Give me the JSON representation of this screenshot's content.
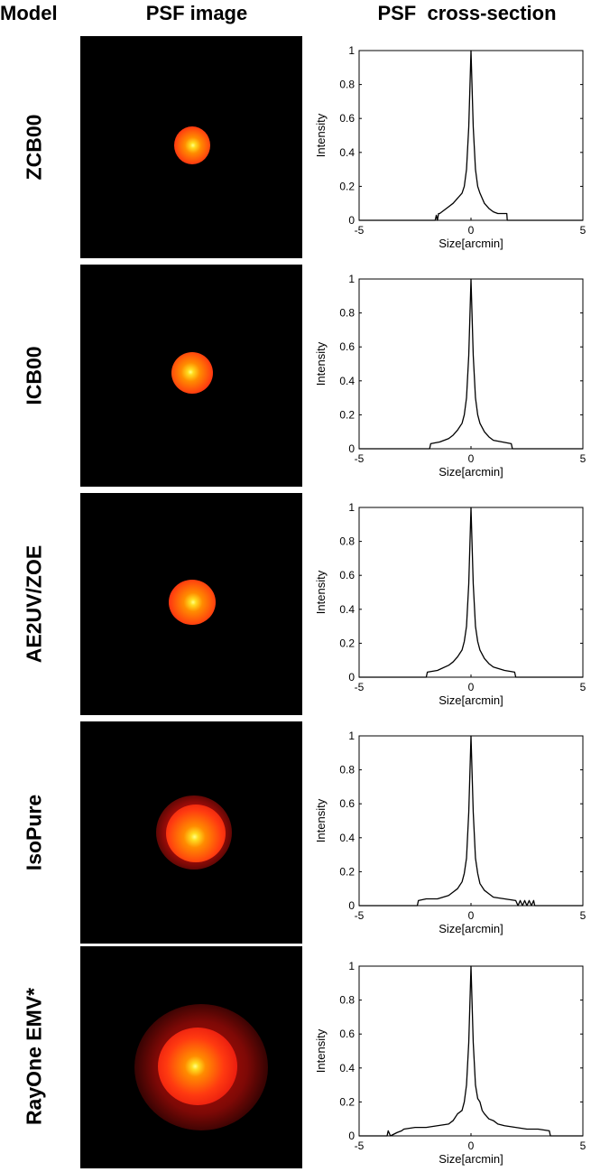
{
  "headers": {
    "model": "Model",
    "psf_image": "PSF image",
    "cross_section": "PSF  cross-section"
  },
  "colors": {
    "psf_background": "#000000",
    "psf_core": "#ffff66",
    "psf_mid": "#ff6a00",
    "psf_edge": "#e01010",
    "curve": "#000000"
  },
  "chart_data": [
    {
      "type": "line",
      "model": "ZCB00",
      "xlabel": "Size[arcmin]",
      "ylabel": "Intensity",
      "xlim": [
        -5,
        5
      ],
      "ylim": [
        0,
        1
      ],
      "xticks": [
        -5,
        0,
        5
      ],
      "yticks": [
        0,
        0.2,
        0.4,
        0.6,
        0.8,
        1
      ],
      "ytick_labels": [
        "0",
        "0.2",
        "0.4",
        "0.6",
        "0.8",
        "1"
      ],
      "grid": false,
      "x": [
        -5,
        -1.6,
        -1.55,
        -1.5,
        -1.45,
        -1.4,
        -1.2,
        -1.0,
        -0.8,
        -0.6,
        -0.4,
        -0.3,
        -0.2,
        -0.1,
        0,
        0.1,
        0.2,
        0.3,
        0.4,
        0.6,
        0.8,
        1.0,
        1.2,
        1.4,
        1.6,
        1.62,
        5
      ],
      "y": [
        0,
        0,
        0.03,
        0.0,
        0.04,
        0.04,
        0.06,
        0.08,
        0.1,
        0.13,
        0.16,
        0.2,
        0.3,
        0.55,
        1.0,
        0.55,
        0.3,
        0.2,
        0.16,
        0.1,
        0.07,
        0.05,
        0.04,
        0.04,
        0.04,
        0,
        0
      ]
    },
    {
      "type": "line",
      "model": "ICB00",
      "xlabel": "Size[arcmin]",
      "ylabel": "Intensity",
      "xlim": [
        -5,
        5
      ],
      "ylim": [
        0,
        1
      ],
      "xticks": [
        -5,
        0,
        5
      ],
      "yticks": [
        0,
        0.2,
        0.4,
        0.6,
        0.8,
        1
      ],
      "ytick_labels": [
        "0",
        "0.2",
        "0.4",
        "0.6",
        "0.8",
        "1"
      ],
      "grid": false,
      "x": [
        -5,
        -1.85,
        -1.8,
        -1.4,
        -1.0,
        -0.8,
        -0.6,
        -0.4,
        -0.3,
        -0.2,
        -0.1,
        0,
        0.1,
        0.2,
        0.3,
        0.4,
        0.6,
        0.8,
        1.0,
        1.4,
        1.8,
        1.85,
        5
      ],
      "y": [
        0,
        0,
        0.03,
        0.04,
        0.06,
        0.08,
        0.11,
        0.15,
        0.2,
        0.3,
        0.55,
        1.0,
        0.55,
        0.3,
        0.2,
        0.15,
        0.1,
        0.07,
        0.05,
        0.04,
        0.03,
        0,
        0
      ]
    },
    {
      "type": "line",
      "model": "AE2UV/ZOE",
      "xlabel": "Size[arcmin]",
      "ylabel": "Intensity",
      "xlim": [
        -5,
        5
      ],
      "ylim": [
        0,
        1
      ],
      "xticks": [
        -5,
        0,
        5
      ],
      "yticks": [
        0,
        0.2,
        0.4,
        0.6,
        0.8,
        1
      ],
      "ytick_labels": [
        "0",
        "0.2",
        "0.4",
        "0.6",
        "0.8",
        "1"
      ],
      "grid": false,
      "x": [
        -5,
        -2.0,
        -1.95,
        -1.5,
        -1.0,
        -0.8,
        -0.6,
        -0.4,
        -0.3,
        -0.2,
        -0.1,
        0,
        0.1,
        0.2,
        0.3,
        0.4,
        0.6,
        0.8,
        1.0,
        1.5,
        1.95,
        2.0,
        5
      ],
      "y": [
        0,
        0,
        0.03,
        0.04,
        0.07,
        0.09,
        0.12,
        0.16,
        0.21,
        0.3,
        0.55,
        1.0,
        0.55,
        0.3,
        0.21,
        0.16,
        0.11,
        0.08,
        0.06,
        0.04,
        0.03,
        0,
        0
      ]
    },
    {
      "type": "line",
      "model": "IsoPure",
      "xlabel": "Size[arcmin]",
      "ylabel": "Intensity",
      "xlim": [
        -5,
        5
      ],
      "ylim": [
        0,
        1
      ],
      "xticks": [
        -5,
        0,
        5
      ],
      "yticks": [
        0,
        0.2,
        0.4,
        0.6,
        0.8,
        1
      ],
      "ytick_labels": [
        "0",
        "0.2",
        "0.4",
        "0.6",
        "0.8",
        "1"
      ],
      "grid": false,
      "x": [
        -5,
        -2.4,
        -2.35,
        -2.0,
        -1.5,
        -1.0,
        -0.8,
        -0.6,
        -0.4,
        -0.3,
        -0.2,
        -0.1,
        0,
        0.1,
        0.2,
        0.3,
        0.4,
        0.6,
        0.8,
        1.0,
        1.5,
        2.0,
        2.1,
        2.2,
        2.3,
        2.4,
        2.5,
        2.6,
        2.7,
        2.8,
        2.85,
        5
      ],
      "y": [
        0,
        0,
        0.03,
        0.04,
        0.04,
        0.06,
        0.08,
        0.1,
        0.14,
        0.19,
        0.28,
        0.55,
        1.0,
        0.55,
        0.28,
        0.19,
        0.13,
        0.09,
        0.07,
        0.05,
        0.04,
        0.03,
        0.0,
        0.03,
        0.0,
        0.03,
        0.0,
        0.03,
        0.0,
        0.03,
        0,
        0
      ]
    },
    {
      "type": "line",
      "model": "RayOne EMV*",
      "xlabel": "Size[arcmin]",
      "ylabel": "Intensity",
      "xlim": [
        -5,
        5
      ],
      "ylim": [
        0,
        1
      ],
      "xticks": [
        -5,
        0,
        5
      ],
      "yticks": [
        0,
        0.2,
        0.4,
        0.6,
        0.8,
        1
      ],
      "ytick_labels": [
        "0",
        "0.2",
        "0.4",
        "0.6",
        "0.8",
        "1"
      ],
      "grid": false,
      "x": [
        -5,
        -3.75,
        -3.7,
        -3.6,
        -3.3,
        -3.1,
        -3.0,
        -2.5,
        -2.0,
        -1.5,
        -1.0,
        -0.8,
        -0.6,
        -0.4,
        -0.3,
        -0.2,
        -0.1,
        0,
        0.1,
        0.2,
        0.3,
        0.4,
        0.5,
        0.6,
        0.8,
        1.0,
        1.2,
        1.5,
        2.0,
        2.5,
        3.0,
        3.5,
        3.55,
        5
      ],
      "y": [
        0,
        0,
        0.03,
        0.0,
        0.02,
        0.03,
        0.04,
        0.05,
        0.05,
        0.06,
        0.07,
        0.09,
        0.13,
        0.15,
        0.2,
        0.3,
        0.55,
        1.0,
        0.55,
        0.3,
        0.22,
        0.2,
        0.15,
        0.13,
        0.1,
        0.09,
        0.07,
        0.06,
        0.05,
        0.04,
        0.04,
        0.03,
        0,
        0
      ]
    }
  ]
}
